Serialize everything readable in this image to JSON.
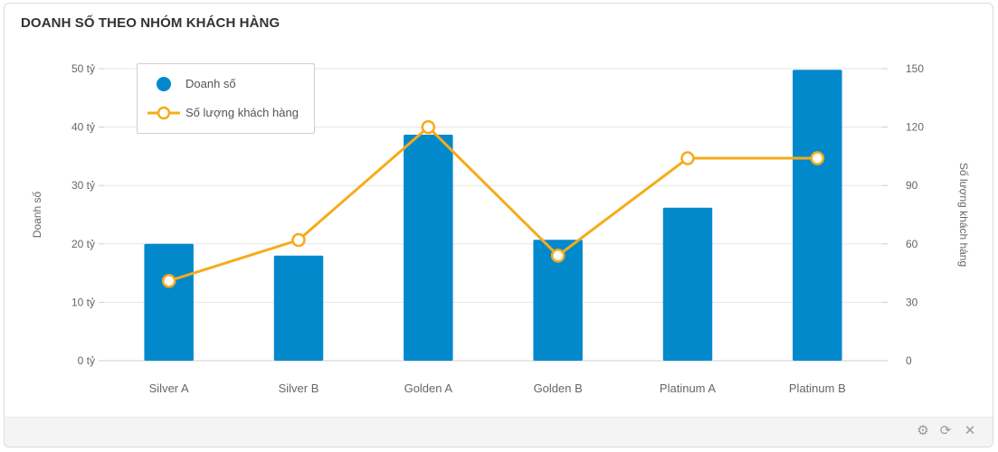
{
  "panel": {
    "title": "DOANH SỐ THEO NHÓM KHÁCH HÀNG"
  },
  "toolbar": {
    "settings_icon": "gear-icon",
    "refresh_icon": "refresh-icon",
    "close_icon": "close-icon"
  },
  "colors": {
    "bar": "#0289cc",
    "line": "#f6ab1a",
    "grid": "#e5e5e5",
    "axis_text": "#666666"
  },
  "chart_data": {
    "type": "bar",
    "categories": [
      "Silver A",
      "Silver B",
      "Golden A",
      "Golden B",
      "Platinum A",
      "Platinum B"
    ],
    "series": [
      {
        "name": "Doanh số",
        "type": "bar",
        "axis": "left",
        "values": [
          20,
          18,
          38.7,
          20.7,
          26.2,
          49.8
        ]
      },
      {
        "name": "Số lượng khách hàng",
        "type": "line",
        "axis": "right",
        "values": [
          41,
          62,
          120,
          54,
          104,
          104
        ]
      }
    ],
    "y_left": {
      "label": "Doanh số",
      "ticks": [
        "0 tỷ",
        "10 tỷ",
        "20 tỷ",
        "30 tỷ",
        "40 tỷ",
        "50 tỷ"
      ],
      "ylim": [
        0,
        50
      ]
    },
    "y_right": {
      "label": "Số lượng khách hàng",
      "ticks": [
        "0",
        "30",
        "60",
        "90",
        "120",
        "150"
      ],
      "ylim": [
        0,
        150
      ]
    },
    "grid": true,
    "legend_position": "top-left"
  }
}
